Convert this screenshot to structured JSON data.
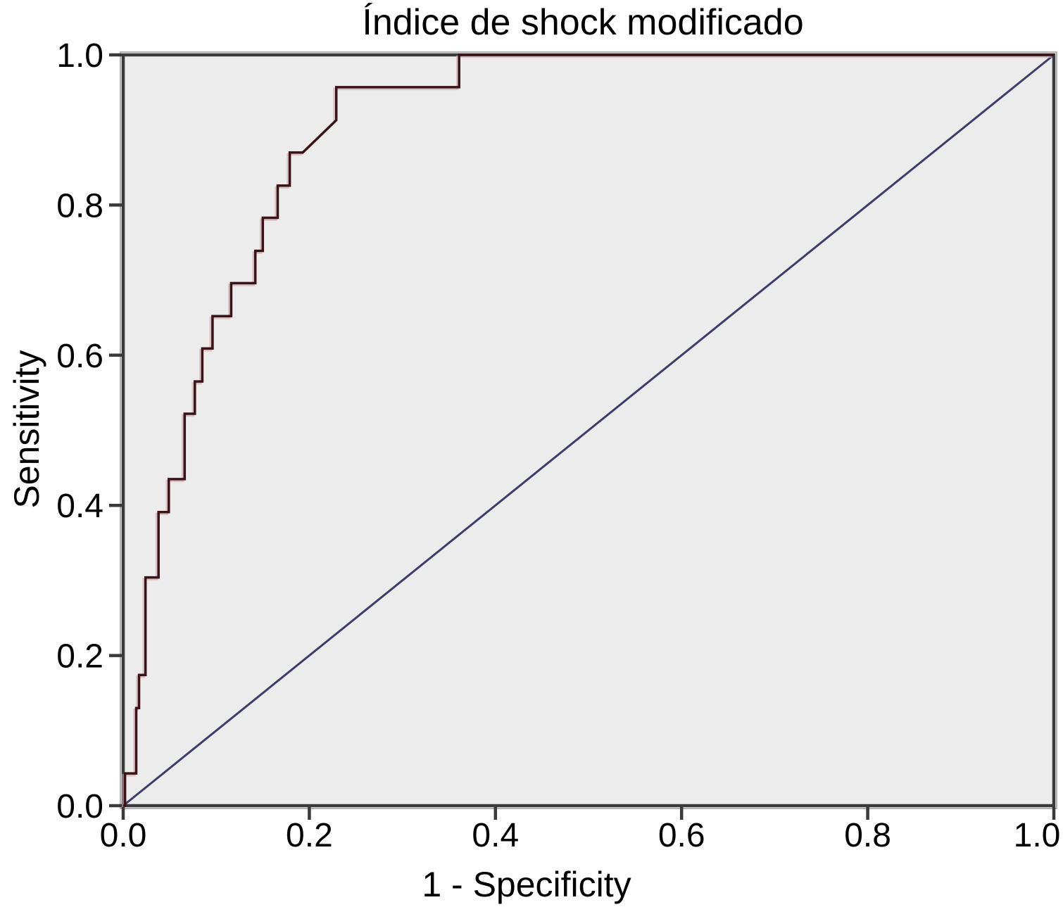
{
  "chart_data": {
    "type": "line",
    "title": "Índice de shock modificado",
    "xlabel": "1 - Specificity",
    "ylabel": "Sensitivity",
    "xlim": [
      0,
      1
    ],
    "ylim": [
      0,
      1
    ],
    "grid": false,
    "legend": "none",
    "plot_background": "#edecec",
    "frame_color": "#3a3a3a",
    "frame_highlight_color": "#b4b4b4",
    "x_tick_labels": [
      "0.0",
      "0.2",
      "0.4",
      "0.6",
      "0.8",
      "1.0"
    ],
    "x_tick_values": [
      0,
      0.2,
      0.4,
      0.6,
      0.8,
      1
    ],
    "y_tick_labels": [
      "0.0",
      "0.2",
      "0.4",
      "0.6",
      "0.8",
      "1.0"
    ],
    "y_tick_values": [
      0,
      0.2,
      0.4,
      0.6,
      0.8,
      1
    ],
    "series": [
      {
        "name": "ROC curve - Índice de shock modificado",
        "type": "step",
        "color": "#3a1318",
        "shadow_color": "#c9abad",
        "points": [
          [
            0.0,
            0.0
          ],
          [
            0.002,
            0.0
          ],
          [
            0.002,
            0.043
          ],
          [
            0.014,
            0.043
          ],
          [
            0.014,
            0.13
          ],
          [
            0.017,
            0.13
          ],
          [
            0.017,
            0.174
          ],
          [
            0.024,
            0.174
          ],
          [
            0.024,
            0.304
          ],
          [
            0.038,
            0.304
          ],
          [
            0.038,
            0.391
          ],
          [
            0.049,
            0.391
          ],
          [
            0.049,
            0.435
          ],
          [
            0.066,
            0.435
          ],
          [
            0.066,
            0.522
          ],
          [
            0.077,
            0.522
          ],
          [
            0.077,
            0.565
          ],
          [
            0.085,
            0.565
          ],
          [
            0.085,
            0.609
          ],
          [
            0.096,
            0.609
          ],
          [
            0.096,
            0.652
          ],
          [
            0.116,
            0.652
          ],
          [
            0.116,
            0.696
          ],
          [
            0.142,
            0.696
          ],
          [
            0.142,
            0.739
          ],
          [
            0.15,
            0.739
          ],
          [
            0.15,
            0.783
          ],
          [
            0.166,
            0.783
          ],
          [
            0.166,
            0.826
          ],
          [
            0.179,
            0.826
          ],
          [
            0.179,
            0.87
          ],
          [
            0.193,
            0.87
          ],
          [
            0.229,
            0.913
          ],
          [
            0.229,
            0.957
          ],
          [
            0.361,
            0.957
          ],
          [
            0.361,
            1.0
          ],
          [
            1.0,
            1.0
          ]
        ]
      },
      {
        "name": "Reference line",
        "type": "line",
        "color": "#3d3d6b",
        "points": [
          [
            0,
            0
          ],
          [
            1,
            1
          ]
        ]
      }
    ]
  }
}
